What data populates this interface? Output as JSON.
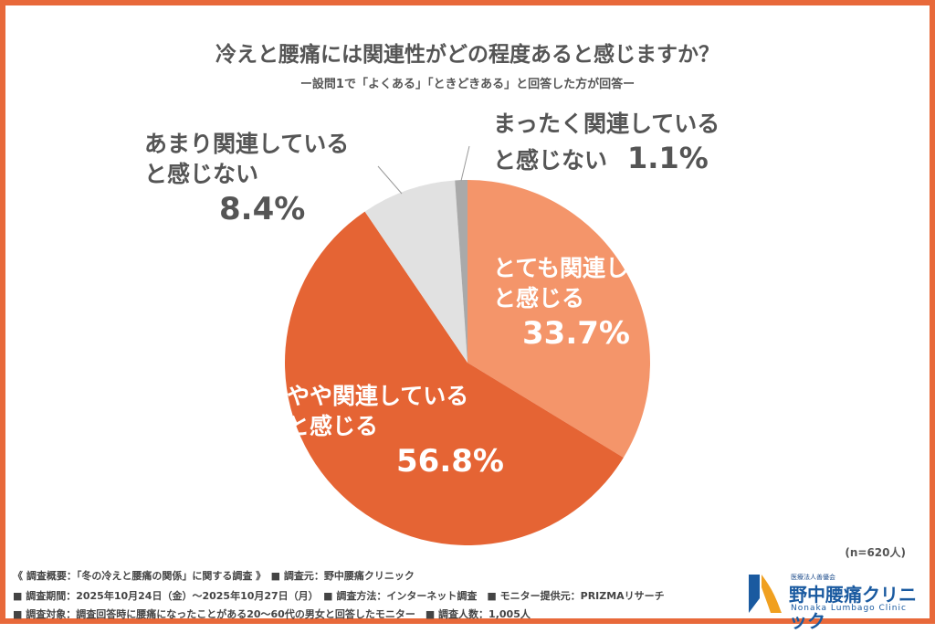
{
  "title": "冷えと腰痛には関連性がどの程度あると感じますか？",
  "subtitle": "ー設問1で「よくある」「ときどきある」と回答した方が回答ー",
  "chart_data": {
    "type": "pie",
    "title": "冷えと腰痛には関連性がどの程度あると感じますか？",
    "slices": [
      {
        "label_lines": [
          "とても関連している",
          "と感じる"
        ],
        "value": 33.7,
        "value_label": "33.7%",
        "color": "#F4956A",
        "text_color": "#ffffff"
      },
      {
        "label_lines": [
          "やや関連している",
          "と感じる"
        ],
        "value": 56.8,
        "value_label": "56.8%",
        "color": "#E56434",
        "text_color": "#ffffff"
      },
      {
        "label_lines": [
          "あまり関連している",
          "と感じない"
        ],
        "value": 8.4,
        "value_label": "8.4%",
        "color": "#E1E1E1",
        "text_color": "#555555"
      },
      {
        "label_lines": [
          "まったく関連している",
          "と感じない"
        ],
        "value": 1.1,
        "value_label": "1.1%",
        "color": "#A9A9A9",
        "text_color": "#555555"
      }
    ],
    "start": "12 o'clock, clockwise"
  },
  "sample": "(n=620人)",
  "footer": [
    "《 調査概要：「冬の冷えと腰痛の関係」に関する調査 》　■ 調査元：野中腰痛クリニック",
    "■ 調査期間：2025年10月24日（金）～2025年10月27日（月）　■ 調査方法：インターネット調査　■ モニター提供元：PRIZMAリサーチ",
    "■ 調査対象：調査回答時に腰痛になったことがある20～60代の男女と回答したモニター　■ 調査人数：1,005人"
  ],
  "logo": {
    "small": "医療法人善優会",
    "name": "野中腰痛クリニック",
    "en": "Nonaka Lumbago Clinic"
  }
}
